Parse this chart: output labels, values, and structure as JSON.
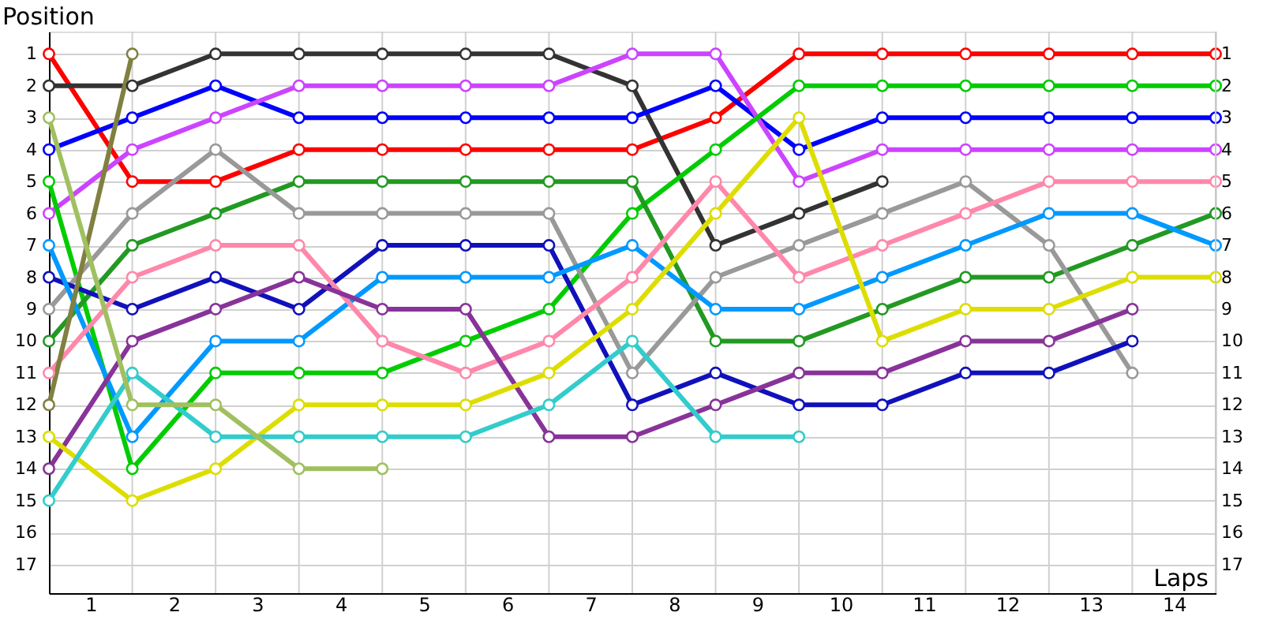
{
  "chart_data": {
    "type": "line",
    "xlabel": "Laps",
    "ylabel": "Position",
    "x": [
      0,
      1,
      2,
      3,
      4,
      5,
      6,
      7,
      8,
      9,
      10,
      11,
      12,
      13,
      14
    ],
    "xlim": [
      0,
      14
    ],
    "xticks": [
      {
        "value": 0.5,
        "label": "1"
      },
      {
        "value": 1.5,
        "label": "2"
      },
      {
        "value": 2.5,
        "label": "3"
      },
      {
        "value": 3.5,
        "label": "4"
      },
      {
        "value": 4.5,
        "label": "5"
      },
      {
        "value": 5.5,
        "label": "6"
      },
      {
        "value": 6.5,
        "label": "7"
      },
      {
        "value": 7.5,
        "label": "8"
      },
      {
        "value": 8.5,
        "label": "9"
      },
      {
        "value": 9.5,
        "label": "10"
      },
      {
        "value": 10.5,
        "label": "11"
      },
      {
        "value": 11.5,
        "label": "12"
      },
      {
        "value": 12.5,
        "label": "13"
      },
      {
        "value": 13.5,
        "label": "14"
      },
      {
        "value": 1,
        "label": null
      },
      {
        "value": 2,
        "label": null
      },
      {
        "value": 3,
        "label": null
      },
      {
        "value": 4,
        "label": null
      },
      {
        "value": 5,
        "label": null
      },
      {
        "value": 6,
        "label": null
      },
      {
        "value": 7,
        "label": null
      },
      {
        "value": 8,
        "label": null
      },
      {
        "value": 9,
        "label": null
      },
      {
        "value": 10,
        "label": null
      },
      {
        "value": 11,
        "label": null
      },
      {
        "value": 12,
        "label": null
      },
      {
        "value": 13,
        "label": null
      },
      {
        "value": 14,
        "label": null
      }
    ],
    "ylim": [
      17.9,
      0.3
    ],
    "yticks": [
      1,
      2,
      3,
      4,
      5,
      6,
      7,
      8,
      9,
      10,
      11,
      12,
      13,
      14,
      15,
      16,
      17
    ],
    "y2lim": [
      17.9,
      0.3
    ],
    "y2ticks": [
      1,
      2,
      3,
      4,
      5,
      6,
      7,
      8,
      9,
      10,
      11,
      12,
      13,
      14,
      15,
      16,
      17
    ],
    "grid": true,
    "legend": false,
    "marker": "circle",
    "line_style": "solid",
    "series": [
      {
        "color": "#ff0000",
        "values": [
          1,
          5,
          5,
          4,
          4,
          4,
          4,
          4,
          3,
          1,
          1,
          1,
          1,
          1,
          1
        ]
      },
      {
        "color": "#333333",
        "values": [
          2,
          2,
          1,
          1,
          1,
          1,
          1,
          2,
          7,
          6,
          5,
          null,
          null,
          null,
          null
        ]
      },
      {
        "color": "#0000ff",
        "values": [
          4,
          3,
          2,
          3,
          3,
          3,
          3,
          3,
          2,
          4,
          3,
          3,
          3,
          3,
          3
        ]
      },
      {
        "color": "#cc44ff",
        "values": [
          6,
          4,
          3,
          2,
          2,
          2,
          2,
          1,
          1,
          5,
          4,
          4,
          4,
          4,
          4
        ]
      },
      {
        "color": "#00cc00",
        "values": [
          5,
          14,
          11,
          11,
          11,
          10,
          9,
          6,
          4,
          2,
          2,
          2,
          2,
          2,
          2
        ]
      },
      {
        "color": "#229922",
        "values": [
          10,
          7,
          6,
          5,
          5,
          5,
          5,
          5,
          10,
          10,
          9,
          8,
          8,
          7,
          6
        ]
      },
      {
        "color": "#999999",
        "values": [
          9,
          6,
          4,
          6,
          6,
          6,
          6,
          11,
          8,
          7,
          6,
          5,
          7,
          11,
          null
        ]
      },
      {
        "color": "#1111bb",
        "values": [
          8,
          9,
          8,
          9,
          7,
          7,
          7,
          12,
          11,
          12,
          12,
          11,
          11,
          10,
          null
        ]
      },
      {
        "color": "#0099ff",
        "values": [
          7,
          13,
          10,
          10,
          8,
          8,
          8,
          7,
          9,
          9,
          8,
          7,
          6,
          6,
          7
        ]
      },
      {
        "color": "#ff88aa",
        "values": [
          11,
          8,
          7,
          7,
          10,
          11,
          10,
          8,
          5,
          8,
          7,
          6,
          5,
          5,
          5
        ]
      },
      {
        "color": "#883399",
        "values": [
          14,
          10,
          9,
          8,
          9,
          9,
          13,
          13,
          12,
          11,
          11,
          10,
          10,
          9,
          null
        ]
      },
      {
        "color": "#dddd00",
        "values": [
          13,
          15,
          14,
          12,
          12,
          12,
          11,
          9,
          6,
          3,
          10,
          9,
          9,
          8,
          8
        ]
      },
      {
        "color": "#33cccc",
        "values": [
          15,
          11,
          13,
          13,
          13,
          13,
          12,
          10,
          13,
          13,
          null,
          null,
          null,
          null,
          null
        ]
      },
      {
        "color": "#808040",
        "values": [
          12,
          1,
          null,
          null,
          null,
          null,
          null,
          null,
          null,
          null,
          null,
          null,
          null,
          null,
          null
        ]
      },
      {
        "color": "#a0c060",
        "values": [
          3,
          12,
          12,
          14,
          14,
          null,
          null,
          null,
          null,
          null,
          null,
          null,
          null,
          null,
          null
        ]
      }
    ]
  }
}
